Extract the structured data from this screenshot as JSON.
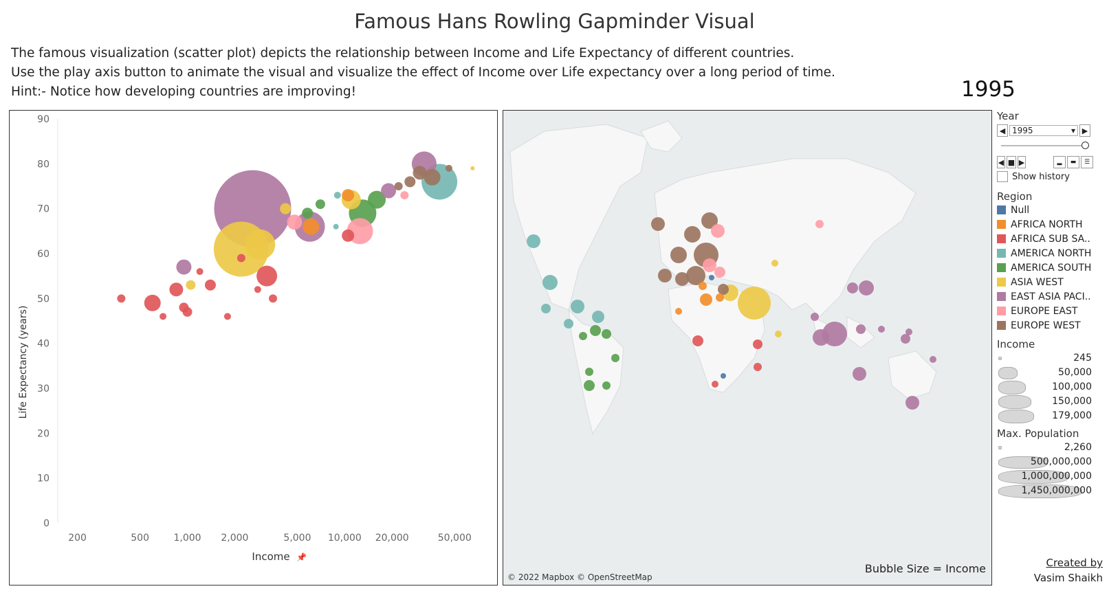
{
  "title": "Famous Hans Rowling Gapminder Visual",
  "description": [
    "The famous visualization (scatter plot) depicts the relationship between Income and Life Expectancy of different countries.",
    "Use the play axis button to animate the visual and visualize the effect of Income over Life expectancy over a long period of time.",
    "Hint:- Notice how developing countries are improving!"
  ],
  "current_year": "1995",
  "colors": {
    "Null": "#4e79a7",
    "AFRICA NORTH": "#f28e2b",
    "AFRICA SUB SAHARA": "#e15759",
    "AMERICA NORTH": "#76b7b2",
    "AMERICA SOUTH": "#59a14f",
    "ASIA WEST": "#edc948",
    "EAST ASIA PACIFIC": "#b07aa1",
    "EUROPE EAST": "#ff9da7",
    "EUROPE WEST": "#9c755f"
  },
  "chart_data": {
    "type": "scatter",
    "xlabel": "Income",
    "ylabel": "Life Expectancy (years)",
    "x_scale": "log",
    "x_ticks": [
      200,
      500,
      1000,
      2000,
      5000,
      10000,
      20000,
      50000
    ],
    "x_tick_labels": [
      "200",
      "500",
      "1,000",
      "2,000",
      "5,000",
      "10,000",
      "20,000",
      "50,000"
    ],
    "y_ticks": [
      0,
      10,
      20,
      30,
      40,
      50,
      60,
      70,
      80,
      90
    ],
    "ylim": [
      0,
      90
    ],
    "points": [
      {
        "r": "EAST ASIA PACIFIC",
        "x": 2600,
        "y": 70,
        "s": 56
      },
      {
        "r": "ASIA WEST",
        "x": 2200,
        "y": 61,
        "s": 40
      },
      {
        "r": "ASIA WEST",
        "x": 2900,
        "y": 62,
        "s": 22
      },
      {
        "r": "AMERICA NORTH",
        "x": 40000,
        "y": 76,
        "s": 26
      },
      {
        "r": "EAST ASIA PACIFIC",
        "x": 32000,
        "y": 80,
        "s": 18
      },
      {
        "r": "EUROPE WEST",
        "x": 36000,
        "y": 77,
        "s": 12
      },
      {
        "r": "EUROPE WEST",
        "x": 30000,
        "y": 78,
        "s": 10
      },
      {
        "r": "AMERICA SOUTH",
        "x": 13000,
        "y": 69,
        "s": 20
      },
      {
        "r": "EUROPE EAST",
        "x": 12500,
        "y": 65,
        "s": 19
      },
      {
        "r": "EAST ASIA PACIFIC",
        "x": 6000,
        "y": 66,
        "s": 22
      },
      {
        "r": "AFRICA NORTH",
        "x": 6100,
        "y": 66,
        "s": 12
      },
      {
        "r": "AFRICA SUB SAHARA",
        "x": 3200,
        "y": 55,
        "s": 15
      },
      {
        "r": "AFRICA SUB SAHARA",
        "x": 600,
        "y": 49,
        "s": 12
      },
      {
        "r": "AFRICA SUB SAHARA",
        "x": 850,
        "y": 52,
        "s": 10
      },
      {
        "r": "AFRICA SUB SAHARA",
        "x": 1000,
        "y": 47,
        "s": 7
      },
      {
        "r": "AFRICA SUB SAHARA",
        "x": 1400,
        "y": 53,
        "s": 8
      },
      {
        "r": "AFRICA SUB SAHARA",
        "x": 380,
        "y": 50,
        "s": 6
      },
      {
        "r": "EAST ASIA PACIFIC",
        "x": 950,
        "y": 57,
        "s": 11
      },
      {
        "r": "ASIA WEST",
        "x": 1050,
        "y": 53,
        "s": 7
      },
      {
        "r": "AMERICA SOUTH",
        "x": 16000,
        "y": 72,
        "s": 13
      },
      {
        "r": "EAST ASIA PACIFIC",
        "x": 19000,
        "y": 74,
        "s": 11
      },
      {
        "r": "AFRICA NORTH",
        "x": 10500,
        "y": 73,
        "s": 9
      },
      {
        "r": "AMERICA SOUTH",
        "x": 7000,
        "y": 71,
        "s": 7
      },
      {
        "r": "AFRICA SUB SAHARA",
        "x": 10500,
        "y": 64,
        "s": 9
      },
      {
        "r": "EUROPE EAST",
        "x": 4800,
        "y": 67,
        "s": 11
      },
      {
        "r": "ASIA WEST",
        "x": 11000,
        "y": 72,
        "s": 14
      },
      {
        "r": "AFRICA SUB SAHARA",
        "x": 2200,
        "y": 59,
        "s": 6
      },
      {
        "r": "AFRICA SUB SAHARA",
        "x": 1800,
        "y": 46,
        "s": 5
      },
      {
        "r": "AFRICA SUB SAHARA",
        "x": 3500,
        "y": 50,
        "s": 6
      },
      {
        "r": "EUROPE WEST",
        "x": 26000,
        "y": 76,
        "s": 8
      },
      {
        "r": "EUROPE WEST",
        "x": 22000,
        "y": 75,
        "s": 6
      },
      {
        "r": "EUROPE EAST",
        "x": 24000,
        "y": 73,
        "s": 6
      },
      {
        "r": "AMERICA NORTH",
        "x": 9000,
        "y": 73,
        "s": 5
      },
      {
        "r": "AFRICA SUB SAHARA",
        "x": 700,
        "y": 46,
        "s": 5
      },
      {
        "r": "AFRICA SUB SAHARA",
        "x": 1200,
        "y": 56,
        "s": 5
      },
      {
        "r": "ASIA WEST",
        "x": 4200,
        "y": 70,
        "s": 8
      },
      {
        "r": "AMERICA SOUTH",
        "x": 5800,
        "y": 69,
        "s": 8
      },
      {
        "r": "EUROPE WEST",
        "x": 46000,
        "y": 79,
        "s": 5
      },
      {
        "r": "ASIA WEST",
        "x": 65000,
        "y": 79,
        "s": 3
      },
      {
        "r": "AFRICA SUB SAHARA",
        "x": 950,
        "y": 48,
        "s": 7
      },
      {
        "r": "AFRICA SUB SAHARA",
        "x": 2800,
        "y": 52,
        "s": 5
      },
      {
        "r": "AMERICA NORTH",
        "x": 8800,
        "y": 66,
        "s": 4
      }
    ]
  },
  "map": {
    "credit": "© 2022 Mapbox © OpenStreetMap",
    "note": "Bubble Size = Income",
    "bubbles": [
      {
        "r": "EUROPE WEST",
        "x": 275,
        "y": 180,
        "s": 12
      },
      {
        "r": "EUROPE WEST",
        "x": 295,
        "y": 210,
        "s": 18
      },
      {
        "r": "EUROPE WEST",
        "x": 255,
        "y": 210,
        "s": 12
      },
      {
        "r": "EUROPE WEST",
        "x": 235,
        "y": 240,
        "s": 10
      },
      {
        "r": "EUROPE WEST",
        "x": 280,
        "y": 240,
        "s": 14
      },
      {
        "r": "EUROPE WEST",
        "x": 300,
        "y": 160,
        "s": 12
      },
      {
        "r": "EUROPE WEST",
        "x": 225,
        "y": 165,
        "s": 10
      },
      {
        "r": "EUROPE WEST",
        "x": 260,
        "y": 245,
        "s": 10
      },
      {
        "r": "EUROPE WEST",
        "x": 320,
        "y": 260,
        "s": 8
      },
      {
        "r": "EUROPE EAST",
        "x": 312,
        "y": 175,
        "s": 10
      },
      {
        "r": "EUROPE EAST",
        "x": 300,
        "y": 225,
        "s": 10
      },
      {
        "r": "EUROPE EAST",
        "x": 315,
        "y": 235,
        "s": 8
      },
      {
        "r": "EUROPE EAST",
        "x": 460,
        "y": 165,
        "s": 6
      },
      {
        "r": "ASIA WEST",
        "x": 365,
        "y": 280,
        "s": 24
      },
      {
        "r": "ASIA WEST",
        "x": 330,
        "y": 265,
        "s": 12
      },
      {
        "r": "ASIA WEST",
        "x": 395,
        "y": 222,
        "s": 5
      },
      {
        "r": "ASIA WEST",
        "x": 400,
        "y": 325,
        "s": 5
      },
      {
        "r": "AFRICA NORTH",
        "x": 295,
        "y": 275,
        "s": 9
      },
      {
        "r": "AFRICA NORTH",
        "x": 315,
        "y": 272,
        "s": 6
      },
      {
        "r": "AFRICA NORTH",
        "x": 290,
        "y": 255,
        "s": 6
      },
      {
        "r": "AFRICA NORTH",
        "x": 255,
        "y": 292,
        "s": 5
      },
      {
        "r": "AFRICA SUB SAHARA",
        "x": 283,
        "y": 335,
        "s": 8
      },
      {
        "r": "AFRICA SUB SAHARA",
        "x": 370,
        "y": 340,
        "s": 7
      },
      {
        "r": "AFRICA SUB SAHARA",
        "x": 370,
        "y": 373,
        "s": 6
      },
      {
        "r": "AFRICA SUB SAHARA",
        "x": 308,
        "y": 398,
        "s": 5
      },
      {
        "r": "Null",
        "x": 320,
        "y": 386,
        "s": 4
      },
      {
        "r": "Null",
        "x": 303,
        "y": 243,
        "s": 4
      },
      {
        "r": "AMERICA NORTH",
        "x": 44,
        "y": 190,
        "s": 10
      },
      {
        "r": "AMERICA NORTH",
        "x": 68,
        "y": 250,
        "s": 11
      },
      {
        "r": "AMERICA NORTH",
        "x": 108,
        "y": 285,
        "s": 10
      },
      {
        "r": "AMERICA NORTH",
        "x": 138,
        "y": 300,
        "s": 9
      },
      {
        "r": "AMERICA NORTH",
        "x": 62,
        "y": 288,
        "s": 7
      },
      {
        "r": "AMERICA NORTH",
        "x": 95,
        "y": 310,
        "s": 7
      },
      {
        "r": "AMERICA SOUTH",
        "x": 125,
        "y": 400,
        "s": 8
      },
      {
        "r": "AMERICA SOUTH",
        "x": 134,
        "y": 320,
        "s": 8
      },
      {
        "r": "AMERICA SOUTH",
        "x": 150,
        "y": 325,
        "s": 7
      },
      {
        "r": "AMERICA SOUTH",
        "x": 163,
        "y": 360,
        "s": 6
      },
      {
        "r": "AMERICA SOUTH",
        "x": 150,
        "y": 400,
        "s": 6
      },
      {
        "r": "AMERICA SOUTH",
        "x": 116,
        "y": 328,
        "s": 6
      },
      {
        "r": "AMERICA SOUTH",
        "x": 125,
        "y": 380,
        "s": 6
      },
      {
        "r": "EAST ASIA PACIFIC",
        "x": 482,
        "y": 325,
        "s": 18
      },
      {
        "r": "EAST ASIA PACIFIC",
        "x": 462,
        "y": 330,
        "s": 12
      },
      {
        "r": "EAST ASIA PACIFIC",
        "x": 528,
        "y": 258,
        "s": 11
      },
      {
        "r": "EAST ASIA PACIFIC",
        "x": 508,
        "y": 258,
        "s": 8
      },
      {
        "r": "EAST ASIA PACIFIC",
        "x": 520,
        "y": 318,
        "s": 7
      },
      {
        "r": "EAST ASIA PACIFIC",
        "x": 518,
        "y": 383,
        "s": 10
      },
      {
        "r": "EAST ASIA PACIFIC",
        "x": 595,
        "y": 425,
        "s": 10
      },
      {
        "r": "EAST ASIA PACIFIC",
        "x": 585,
        "y": 332,
        "s": 7
      },
      {
        "r": "EAST ASIA PACIFIC",
        "x": 453,
        "y": 300,
        "s": 6
      },
      {
        "r": "EAST ASIA PACIFIC",
        "x": 550,
        "y": 318,
        "s": 5
      },
      {
        "r": "EAST ASIA PACIFIC",
        "x": 590,
        "y": 322,
        "s": 5
      },
      {
        "r": "EAST ASIA PACIFIC",
        "x": 625,
        "y": 362,
        "s": 5
      }
    ]
  },
  "year_filter": {
    "header": "Year",
    "selected": "1995",
    "show_history": "Show history"
  },
  "legend": {
    "header": "Region",
    "items": [
      "Null",
      "AFRICA NORTH",
      "AFRICA SUB SA..",
      "AMERICA NORTH",
      "AMERICA SOUTH",
      "ASIA WEST",
      "EAST ASIA PACI..",
      "EUROPE EAST",
      "EUROPE WEST"
    ],
    "keys": [
      "Null",
      "AFRICA NORTH",
      "AFRICA SUB SAHARA",
      "AMERICA NORTH",
      "AMERICA SOUTH",
      "ASIA WEST",
      "EAST ASIA PACIFIC",
      "EUROPE EAST",
      "EUROPE WEST"
    ]
  },
  "income_legend": {
    "header": "Income",
    "values": [
      "245",
      "50,000",
      "100,000",
      "150,000",
      "179,000"
    ]
  },
  "population_legend": {
    "header": "Max. Population",
    "values": [
      "2,260",
      "500,000,000",
      "1,000,000,000",
      "1,450,000,000"
    ]
  },
  "credit": {
    "line1": "Created by",
    "line2": "Vasim Shaikh"
  }
}
